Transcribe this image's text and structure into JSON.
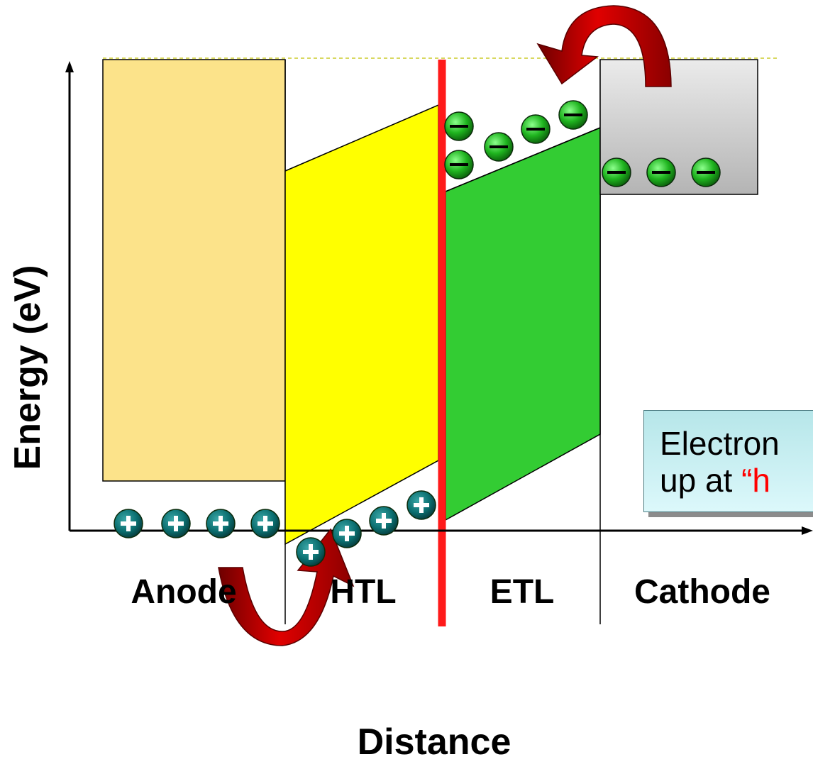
{
  "axes": {
    "y_label": "Energy (eV)",
    "x_label": "Distance"
  },
  "layers": [
    {
      "name": "Anode",
      "color": "#fce38a"
    },
    {
      "name": "HTL",
      "color": "#ffff00"
    },
    {
      "name": "ETL",
      "color": "#33cc33"
    },
    {
      "name": "Cathode",
      "color": "#c8c8c8"
    }
  ],
  "charges": {
    "hole_symbol": "+",
    "electron_symbol": "−",
    "hole_color": "#0b6f70",
    "electron_color": "#1fa81f"
  },
  "interface_line_color": "#ff0000",
  "arrow_color": "#cc0000",
  "callout": {
    "line1": "Electron",
    "line2_prefix": "up at ",
    "line2_highlight": "“h"
  }
}
